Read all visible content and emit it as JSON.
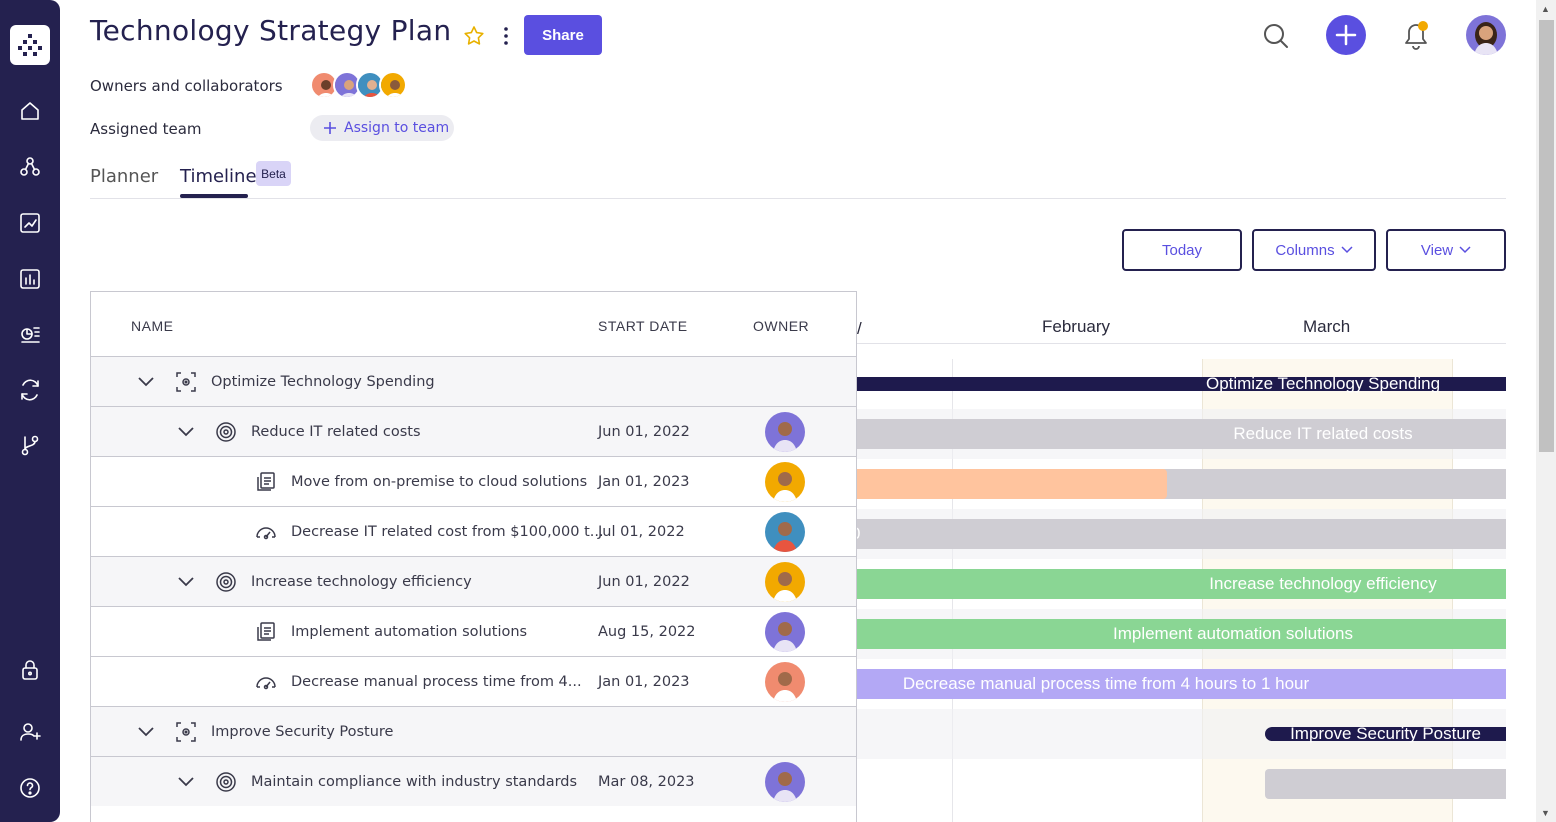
{
  "header": {
    "title": "Technology Strategy Plan",
    "share_label": "Share",
    "owners_label": "Owners and collaborators",
    "team_label": "Assigned team",
    "assign_label": "Assign to team"
  },
  "tabs": [
    {
      "label": "Planner",
      "active": false
    },
    {
      "label": "Timeline",
      "active": true,
      "badge": "Beta"
    }
  ],
  "toolbar": {
    "today": "Today",
    "columns": "Columns",
    "view": "View"
  },
  "table": {
    "columns": [
      "NAME",
      "START DATE",
      "OWNER"
    ],
    "rows": [
      {
        "name": "Optimize Technology Spending",
        "date": "",
        "level": 0,
        "type": "objective"
      },
      {
        "name": "Reduce IT related costs",
        "date": "Jun 01, 2022",
        "level": 1,
        "type": "key-result"
      },
      {
        "name": "Move from on-premise to cloud solutions",
        "date": "Jan 01, 2023",
        "level": 2,
        "type": "initiative"
      },
      {
        "name": "Decrease IT related cost from $100,000 t...",
        "date": "Jul 01, 2022",
        "level": 2,
        "type": "metric"
      },
      {
        "name": "Increase technology efficiency",
        "date": "Jun 01, 2022",
        "level": 1,
        "type": "key-result"
      },
      {
        "name": "Implement automation solutions",
        "date": "Aug 15, 2022",
        "level": 2,
        "type": "initiative"
      },
      {
        "name": "Decrease manual process time from 4...",
        "date": "Jan 01, 2023",
        "level": 2,
        "type": "metric"
      },
      {
        "name": "Improve Security Posture",
        "date": "",
        "level": 0,
        "type": "objective"
      },
      {
        "name": "Maintain compliance with industry standards",
        "date": "Mar 08, 2023",
        "level": 1,
        "type": "key-result"
      }
    ]
  },
  "timeline": {
    "months": [
      "February",
      "March"
    ],
    "bars": [
      {
        "label": "Optimize Technology Spending",
        "color": "#1e1a4d"
      },
      {
        "label": "Reduce IT related costs",
        "color": "#cfcdd3"
      },
      {
        "label": "",
        "color": "#cfcdd3",
        "progress_color": "#ffc49e"
      },
      {
        "label": "0",
        "color": "#cfcdd3"
      },
      {
        "label": "Increase technology efficiency",
        "color": "#8ad694"
      },
      {
        "label": "Implement automation solutions",
        "color": "#8ad694"
      },
      {
        "label": "Decrease manual process time from 4 hours to 1 hour",
        "color": "#b3a8f5"
      },
      {
        "label": "Improve Security Posture",
        "color": "#1e1a4d"
      },
      {
        "label": "",
        "color": "#cfcdd3"
      }
    ]
  },
  "colors": {
    "sidebar": "#24214f",
    "accent": "#5a4fe0"
  }
}
